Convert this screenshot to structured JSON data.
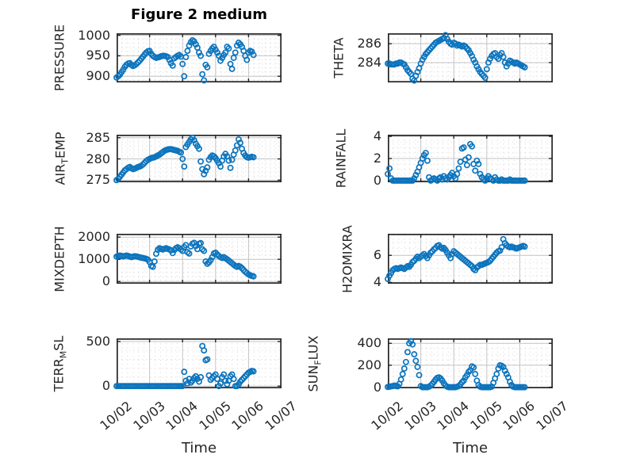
{
  "figure": {
    "title": "Figure 2 medium",
    "xlabel": "Time",
    "colors": {
      "marker": "#0c74bd",
      "frame": "#262626",
      "major_grid": "#c3c3c3",
      "minor_grid": "#d4d4d4",
      "text": "#262626",
      "background": "#ffffff"
    }
  },
  "chart_data": {
    "type": "scatter",
    "title": "Figure 2 medium",
    "xlabel": "Time",
    "marker": "open-circle",
    "grid": "major-solid-minor-dotted",
    "x_tick_labels": [
      "10/02",
      "10/03",
      "10/04",
      "10/05",
      "10/06",
      "10/07"
    ],
    "x_range_days": [
      0,
      5
    ],
    "x_days_since_1002": [
      0,
      0.05,
      0.1,
      0.15,
      0.2,
      0.25,
      0.3,
      0.35,
      0.4,
      0.45,
      0.5,
      0.55,
      0.6,
      0.65,
      0.7,
      0.75,
      0.8,
      0.85,
      0.9,
      0.95,
      1,
      1.05,
      1.1,
      1.15,
      1.2,
      1.25,
      1.3,
      1.35,
      1.4,
      1.45,
      1.5,
      1.55,
      1.6,
      1.65,
      1.7,
      1.75,
      1.8,
      1.85,
      1.9,
      1.95,
      2,
      2.05,
      2.1,
      2.15,
      2.2,
      2.25,
      2.3,
      2.35,
      2.4,
      2.45,
      2.5,
      2.55,
      2.6,
      2.65,
      2.7,
      2.75,
      2.8,
      2.85,
      2.9,
      2.95,
      3,
      3.05,
      3.1,
      3.15,
      3.2,
      3.25,
      3.3,
      3.35,
      3.4,
      3.45,
      3.5,
      3.55,
      3.6,
      3.65,
      3.7,
      3.75,
      3.8,
      3.85,
      3.9,
      3.95,
      4,
      4.05,
      4.1,
      4.15
    ],
    "series": [
      {
        "name": "PRESSURE",
        "label_pre": "PRESSURE",
        "label_sub": "",
        "label_post": "",
        "ylim": [
          885,
          1005
        ],
        "yticks": [
          900,
          950,
          1000
        ],
        "ytick_labels": [
          "900",
          "950",
          "1000"
        ],
        "yminor_step": 10,
        "values": [
          897,
          900,
          904,
          910,
          916,
          923,
          928,
          931,
          932,
          928,
          925,
          927,
          930,
          934,
          938,
          943,
          948,
          953,
          958,
          961,
          962,
          955,
          950,
          947,
          945,
          946,
          947,
          949,
          950,
          950,
          949,
          947,
          940,
          932,
          926,
          944,
          947,
          950,
          952,
          948,
          930,
          900,
          947,
          962,
          975,
          983,
          988,
          985,
          978,
          970,
          958,
          950,
          905,
          890,
          928,
          922,
          955,
          962,
          968,
          972,
          965,
          958,
          950,
          938,
          945,
          952,
          958,
          972,
          968,
          930,
          918,
          945,
          958,
          975,
          982,
          978,
          972,
          962,
          950,
          940,
          958,
          962,
          960,
          952
        ]
      },
      {
        "name": "AIR_TEMP",
        "label_pre": "AIR",
        "label_sub": "T",
        "label_post": "EMP",
        "ylim": [
          274.5,
          285.7
        ],
        "yticks": [
          275,
          280,
          285
        ],
        "ytick_labels": [
          "275",
          "280",
          "285"
        ],
        "yminor_step": 1,
        "values": [
          275,
          275.3,
          275.8,
          276.3,
          276.8,
          277.3,
          277.6,
          277.9,
          278.1,
          277.8,
          277.6,
          277.7,
          277.9,
          278.1,
          278.2,
          278.4,
          278.7,
          279.1,
          279.5,
          279.8,
          280,
          280.2,
          280.3,
          280.4,
          280.6,
          280.8,
          281,
          281.3,
          281.6,
          281.9,
          282.1,
          282.2,
          282.3,
          282.3,
          282.2,
          282.1,
          282,
          281.9,
          281.7,
          281.5,
          280,
          278.2,
          282.8,
          283.4,
          284,
          284.6,
          285,
          284.4,
          283.6,
          283,
          282.4,
          279.4,
          277.6,
          276.4,
          277.2,
          278,
          279.8,
          280.4,
          280.8,
          280.6,
          280.2,
          279.6,
          279,
          278.2,
          279.6,
          280.6,
          281.2,
          280.6,
          279.6,
          277.9,
          279.8,
          281,
          282,
          283.2,
          284.6,
          283.8,
          282.4,
          281.4,
          280.8,
          280.4,
          280.3,
          280.4,
          280.5,
          280.4
        ]
      },
      {
        "name": "MIXDEPTH",
        "label_pre": "MIXDEPTH",
        "label_sub": "",
        "label_post": "",
        "ylim": [
          -100,
          2150
        ],
        "yticks": [
          0,
          1000,
          2000
        ],
        "ytick_labels": [
          "0",
          "1000",
          "2000"
        ],
        "yminor_step": 200,
        "values": [
          1120,
          1150,
          1170,
          1150,
          1130,
          1150,
          1170,
          1150,
          1120,
          1100,
          1120,
          1140,
          1130,
          1110,
          1090,
          1070,
          1060,
          1040,
          1020,
          980,
          880,
          700,
          660,
          900,
          1250,
          1430,
          1500,
          1470,
          1440,
          1470,
          1500,
          1470,
          1440,
          1400,
          1280,
          1420,
          1500,
          1540,
          1500,
          1440,
          1380,
          1550,
          1640,
          1320,
          1260,
          1580,
          1700,
          1740,
          1600,
          1460,
          1700,
          1730,
          1450,
          1380,
          900,
          800,
          860,
          960,
          1100,
          1260,
          1300,
          1220,
          1150,
          1100,
          1060,
          1100,
          1050,
          1000,
          940,
          880,
          820,
          760,
          700,
          660,
          700,
          660,
          600,
          520,
          440,
          380,
          320,
          280,
          250,
          230
        ]
      },
      {
        "name": "TERR_MSL",
        "label_pre": "TERR",
        "label_sub": "M",
        "label_post": "SL",
        "ylim": [
          -25,
          535
        ],
        "yticks": [
          0,
          500
        ],
        "ytick_labels": [
          "0",
          "500"
        ],
        "yminor_step": 100,
        "values": [
          0,
          0,
          0,
          0,
          0,
          0,
          0,
          0,
          0,
          0,
          0,
          0,
          0,
          0,
          0,
          0,
          0,
          0,
          0,
          0,
          0,
          0,
          0,
          0,
          0,
          0,
          0,
          0,
          0,
          0,
          0,
          0,
          0,
          0,
          0,
          0,
          0,
          0,
          0,
          0,
          0,
          160,
          60,
          30,
          80,
          40,
          60,
          90,
          110,
          80,
          50,
          100,
          450,
          400,
          290,
          300,
          120,
          70,
          90,
          110,
          130,
          80,
          0,
          30,
          100,
          130,
          60,
          20,
          60,
          110,
          130,
          80,
          0,
          0,
          20,
          50,
          70,
          90,
          110,
          130,
          150,
          160,
          170,
          165
        ]
      },
      {
        "name": "THETA",
        "label_pre": "THETA",
        "label_sub": "",
        "label_post": "",
        "ylim": [
          281.9,
          287.1
        ],
        "yticks": [
          284,
          286
        ],
        "ytick_labels": [
          "284",
          "286"
        ],
        "yminor_step": 0.5,
        "values": [
          283.9,
          283.9,
          283.8,
          283.8,
          283.8,
          283.9,
          283.9,
          284,
          284,
          283.9,
          283.8,
          283.5,
          283.2,
          283,
          282.8,
          282.3,
          282.1,
          282.6,
          283,
          283.4,
          283.9,
          284.3,
          284.6,
          284.9,
          285.1,
          285.3,
          285.5,
          285.7,
          285.9,
          286.1,
          286.2,
          286.3,
          286.4,
          286.5,
          286.6,
          286.9,
          286.5,
          286.2,
          286,
          285.9,
          286.1,
          286,
          285.8,
          285.9,
          285.8,
          285.7,
          285.8,
          285.7,
          285.5,
          285.3,
          285,
          284.7,
          284.3,
          284,
          283.6,
          283.3,
          283,
          282.8,
          282.6,
          282.4,
          283.3,
          284,
          284.4,
          284.7,
          284.9,
          285,
          284.6,
          284.4,
          284.8,
          285,
          284.6,
          284,
          283.6,
          283.9,
          284.2,
          284.1,
          284,
          283.9,
          284,
          283.9,
          283.8,
          283.7,
          283.6,
          283.5
        ]
      },
      {
        "name": "RAINFALL",
        "label_pre": "RAINFALL",
        "label_sub": "",
        "label_post": "",
        "ylim": [
          -0.15,
          4.15
        ],
        "yticks": [
          0,
          2,
          4
        ],
        "ytick_labels": [
          "0",
          "2",
          "4"
        ],
        "yminor_step": 0.5,
        "values": [
          0.6,
          1.1,
          0.2,
          0,
          0,
          0,
          0,
          0,
          0,
          0,
          0,
          0,
          0,
          0,
          0,
          0,
          0.2,
          0.5,
          0.8,
          1.2,
          1.6,
          2,
          2.3,
          2.5,
          1.8,
          0.3,
          0,
          0.1,
          0.2,
          0.1,
          0,
          0.2,
          0.3,
          0.1,
          0.4,
          0.2,
          0.1,
          0.3,
          0.5,
          0.7,
          0.4,
          0.2,
          0.6,
          1.1,
          1.7,
          2.9,
          3,
          1.9,
          1.4,
          2.1,
          3.3,
          3.1,
          1.5,
          0.9,
          1.8,
          1.5,
          0.6,
          0.3,
          0.1,
          0,
          0.2,
          0.4,
          0.2,
          0.1,
          0,
          0.3,
          0.1,
          0,
          0,
          0.1,
          0,
          0,
          0,
          0,
          0.1,
          0,
          0,
          0,
          0,
          0,
          0,
          0,
          0,
          0
        ]
      },
      {
        "name": "H2OMIXRA",
        "label_pre": "H2OMIXRA",
        "label_sub": "",
        "label_post": "",
        "ylim": [
          3.9,
          7.6
        ],
        "yticks": [
          4,
          6
        ],
        "ytick_labels": [
          "4",
          "6"
        ],
        "yminor_step": 0.5,
        "values": [
          4.25,
          4.5,
          4.7,
          4.9,
          5,
          5.05,
          5,
          5.05,
          5.1,
          5.05,
          5,
          5.1,
          5.2,
          5.15,
          5.3,
          5.5,
          5.6,
          5.75,
          5.9,
          5.8,
          5.9,
          6,
          6.1,
          5.95,
          5.8,
          6,
          6.2,
          6.3,
          6.45,
          6.55,
          6.7,
          6.75,
          6.6,
          6.5,
          6.55,
          6.4,
          6.2,
          6,
          5.8,
          6.1,
          6.3,
          6.2,
          6.1,
          6,
          5.9,
          5.8,
          5.7,
          5.6,
          5.5,
          5.4,
          5.3,
          5.2,
          5,
          4.9,
          5.1,
          5.2,
          5.3,
          5.3,
          5.35,
          5.4,
          5.45,
          5.5,
          5.6,
          5.75,
          5.9,
          6.05,
          6.2,
          6.3,
          6.35,
          6.6,
          7.2,
          6.9,
          6.75,
          6.65,
          6.6,
          6.65,
          6.6,
          6.55,
          6.5,
          6.55,
          6.6,
          6.65,
          6.7,
          6.65
        ]
      },
      {
        "name": "SUN_FLUX",
        "label_pre": "SUN",
        "label_sub": "F",
        "label_post": "LUX",
        "ylim": [
          -10,
          445
        ],
        "yticks": [
          0,
          200,
          400
        ],
        "ytick_labels": [
          "0",
          "200",
          "400"
        ],
        "yminor_step": 50,
        "values": [
          2,
          5,
          8,
          10,
          15,
          10,
          8,
          30,
          70,
          120,
          170,
          230,
          320,
          400,
          420,
          390,
          300,
          240,
          185,
          110,
          10,
          0,
          0,
          0,
          0,
          5,
          15,
          30,
          50,
          70,
          85,
          90,
          80,
          60,
          35,
          15,
          5,
          0,
          0,
          0,
          0,
          0,
          5,
          10,
          25,
          45,
          60,
          90,
          110,
          140,
          155,
          190,
          180,
          120,
          60,
          20,
          5,
          0,
          0,
          0,
          0,
          0,
          0,
          5,
          40,
          80,
          120,
          170,
          200,
          195,
          185,
          150,
          120,
          90,
          50,
          20,
          5,
          0,
          0,
          0,
          0,
          0,
          0,
          0
        ]
      }
    ]
  }
}
